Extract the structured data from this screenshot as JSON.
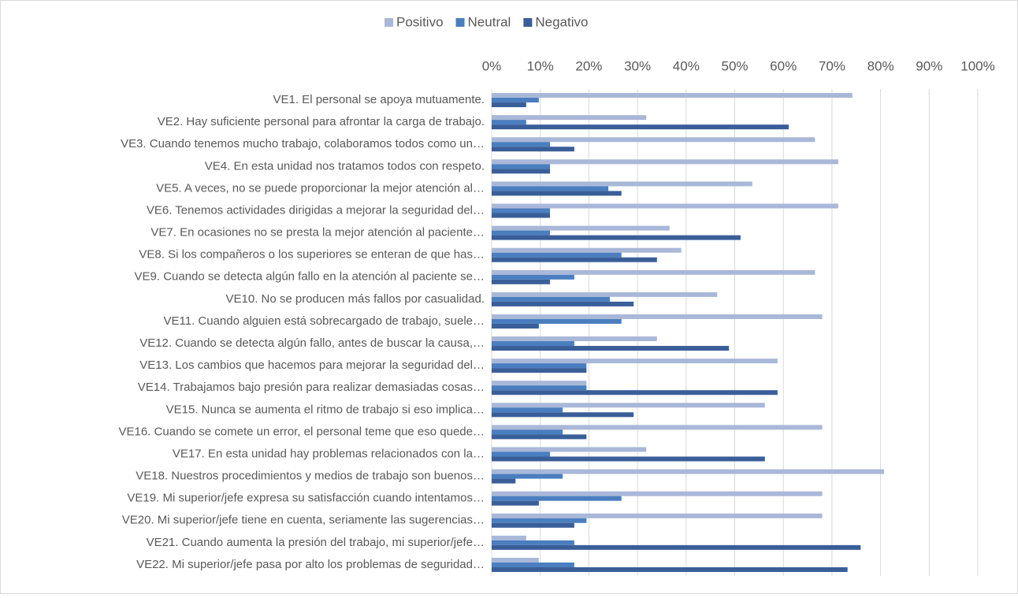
{
  "chart_data": {
    "type": "bar",
    "orientation": "horizontal",
    "categories": [
      "VE1. El personal se apoya mutuamente.",
      "VE2. Hay suficiente personal para afrontar la carga de trabajo.",
      "VE3. Cuando tenemos mucho trabajo, colaboramos todos como un…",
      "VE4. En esta unidad nos tratamos todos con respeto.",
      "VE5. A veces, no se puede proporcionar la mejor atención al…",
      "VE6. Tenemos actividades dirigidas a mejorar la seguridad del…",
      "VE7. En ocasiones no se presta la mejor atención al paciente…",
      "VE8. Si los compañeros o los superiores se enteran de que has…",
      "VE9. Cuando se detecta algún fallo en la atención al paciente se…",
      "VE10. No se producen más fallos por casualidad.",
      "VE11. Cuando alguien está sobrecargado de trabajo, suele…",
      "VE12. Cuando se detecta algún fallo, antes de buscar la causa,…",
      "VE13. Los cambios que hacemos para mejorar la seguridad del…",
      "VE14. Trabajamos bajo presión para realizar demasiadas cosas…",
      "VE15. Nunca se aumenta el ritmo de trabajo si eso implica…",
      "VE16. Cuando se comete un error, el personal teme que eso quede…",
      "VE17. En esta unidad hay problemas relacionados con la…",
      "VE18. Nuestros procedimientos y medios de trabajo son buenos…",
      "VE19. Mi superior/jefe expresa su satisfacción cuando intentamos…",
      "VE20. Mi superior/jefe tiene en cuenta, seriamente las sugerencias…",
      "VE21. Cuando aumenta la presión del trabajo, mi superior/jefe…",
      "VE22. Mi superior/jefe pasa por alto los problemas de seguridad…"
    ],
    "series": [
      {
        "name": "Positivo",
        "color": "#a9b8d8",
        "values": [
          74.2,
          31.8,
          66.5,
          71.3,
          53.6,
          71.3,
          36.6,
          39,
          66.5,
          46.4,
          68,
          34,
          58.8,
          19.5,
          56.2,
          68,
          31.8,
          80.7,
          68,
          68,
          7.1,
          9.7
        ]
      },
      {
        "name": "Neutral",
        "color": "#4a7ebf",
        "values": [
          9.7,
          7.1,
          12,
          12,
          24,
          12,
          12,
          26.7,
          17,
          24.3,
          26.7,
          17,
          19.5,
          19.5,
          14.6,
          14.6,
          12,
          14.6,
          26.7,
          19.5,
          17,
          17
        ]
      },
      {
        "name": "Negativo",
        "color": "#3a5e98",
        "values": [
          7.1,
          61.1,
          17,
          12,
          26.7,
          12,
          51.2,
          34,
          12,
          29.2,
          9.7,
          48.8,
          19.5,
          58.8,
          29.2,
          19.5,
          56.2,
          4.9,
          9.7,
          17,
          75.9,
          73.2
        ]
      }
    ],
    "xlim": [
      0,
      100
    ],
    "xticks": [
      {
        "value": 0,
        "label": "0%"
      },
      {
        "value": 10,
        "label": "10%"
      },
      {
        "value": 20,
        "label": "20%"
      },
      {
        "value": 30,
        "label": "30%"
      },
      {
        "value": 40,
        "label": "40%"
      },
      {
        "value": 50,
        "label": "50%"
      },
      {
        "value": 60,
        "label": "60%"
      },
      {
        "value": 70,
        "label": "70%"
      },
      {
        "value": 80,
        "label": "80%"
      },
      {
        "value": 90,
        "label": "90%"
      },
      {
        "value": 100,
        "label": "100%"
      }
    ],
    "grid": true,
    "legend": "top"
  }
}
